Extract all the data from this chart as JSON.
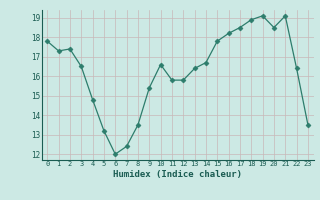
{
  "x": [
    0,
    1,
    2,
    3,
    4,
    5,
    6,
    7,
    8,
    9,
    10,
    11,
    12,
    13,
    14,
    15,
    16,
    17,
    18,
    19,
    20,
    21,
    22,
    23
  ],
  "y": [
    17.8,
    17.3,
    17.4,
    16.5,
    14.8,
    13.2,
    12.0,
    12.4,
    13.5,
    15.4,
    16.6,
    15.8,
    15.8,
    16.4,
    16.7,
    17.8,
    18.2,
    18.5,
    18.9,
    19.1,
    18.5,
    19.1,
    16.4,
    13.5
  ],
  "xlabel": "Humidex (Indice chaleur)",
  "ylim": [
    11.7,
    19.4
  ],
  "xlim": [
    -0.5,
    23.5
  ],
  "yticks": [
    12,
    13,
    14,
    15,
    16,
    17,
    18,
    19
  ],
  "xticks": [
    0,
    1,
    2,
    3,
    4,
    5,
    6,
    7,
    8,
    9,
    10,
    11,
    12,
    13,
    14,
    15,
    16,
    17,
    18,
    19,
    20,
    21,
    22,
    23
  ],
  "line_color": "#2d7d6c",
  "marker": "D",
  "marker_size": 2.5,
  "bg_color": "#cce9e4",
  "grid_color_x": "#c8b8b8",
  "grid_color_y": "#c8b8b8"
}
